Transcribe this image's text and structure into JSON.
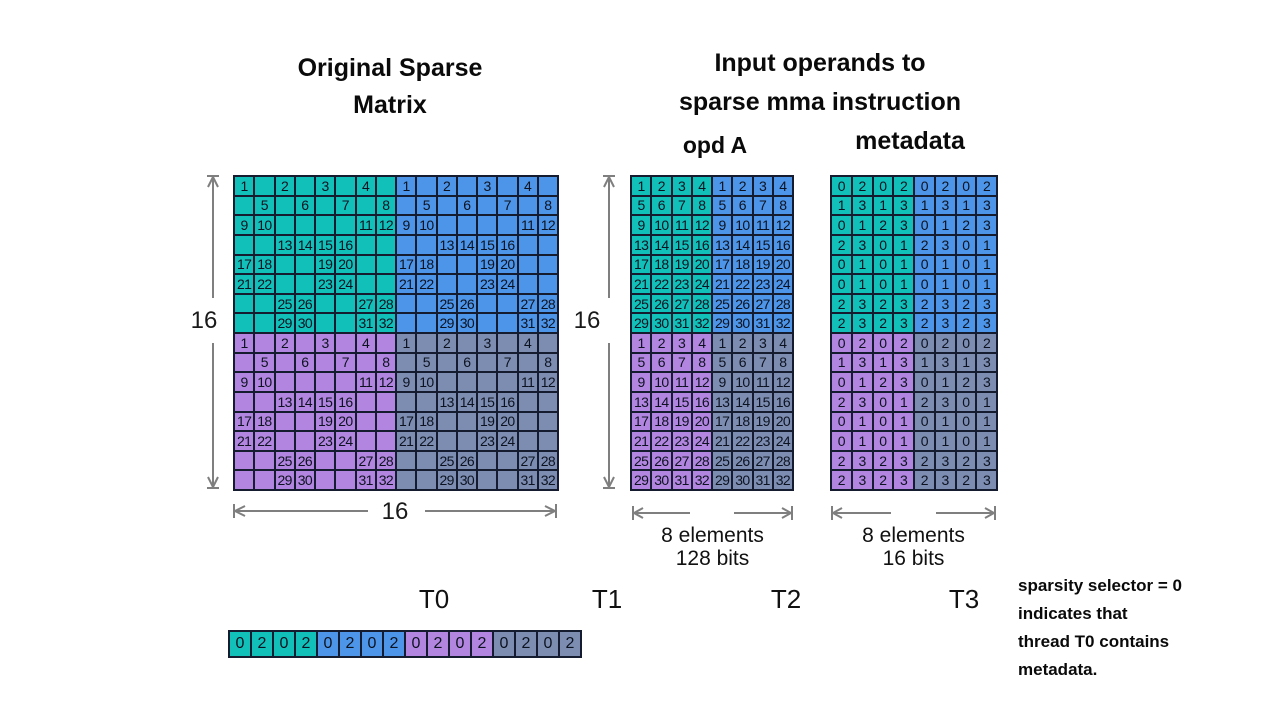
{
  "titles": {
    "original_line1": "Original Sparse",
    "original_line2": "Matrix",
    "input_line1": "Input operands to",
    "input_line2": "sparse mma instruction",
    "opd_a": "opd A",
    "metadata": "metadata"
  },
  "dimension_labels": {
    "matrix_height": "16",
    "matrix_width": "16",
    "opd_height": "16",
    "opd_width_line1": "8 elements",
    "opd_width_line2": "128 bits",
    "meta_width_line1": "8 elements",
    "meta_width_line2": "16 bits"
  },
  "thread_labels": [
    "T0",
    "T1",
    "T2",
    "T3"
  ],
  "note_lines": [
    "sparsity selector = 0",
    "indicates that",
    "thread T0 contains",
    "metadata."
  ],
  "colors": {
    "teal": "#12c0ba",
    "blue": "#4d95e8",
    "purple": "#b286e0",
    "slate": "#7c8db1",
    "border": "#161c30",
    "arrow": "#7f7f7f"
  },
  "quadrant_colors": {
    "tl": "teal",
    "tr": "blue",
    "bl": "purple",
    "br": "slate"
  },
  "grids": {
    "sparse_quadrant": [
      [
        "1",
        "",
        "2",
        "",
        "3",
        "",
        "4",
        ""
      ],
      [
        "",
        "5",
        "",
        "6",
        "",
        "7",
        "",
        "8"
      ],
      [
        "9",
        "10",
        "",
        "",
        "",
        "",
        "11",
        "12"
      ],
      [
        "",
        "",
        "13",
        "14",
        "15",
        "16",
        "",
        ""
      ],
      [
        "17",
        "18",
        "",
        "",
        "19",
        "20",
        "",
        ""
      ],
      [
        "21",
        "22",
        "",
        "",
        "23",
        "24",
        "",
        ""
      ],
      [
        "",
        "",
        "25",
        "26",
        "",
        "",
        "27",
        "28"
      ],
      [
        "",
        "",
        "29",
        "30",
        "",
        "",
        "31",
        "32"
      ]
    ],
    "opd_quadrant": [
      [
        "1",
        "2",
        "3",
        "4"
      ],
      [
        "5",
        "6",
        "7",
        "8"
      ],
      [
        "9",
        "10",
        "11",
        "12"
      ],
      [
        "13",
        "14",
        "15",
        "16"
      ],
      [
        "17",
        "18",
        "19",
        "20"
      ],
      [
        "21",
        "22",
        "23",
        "24"
      ],
      [
        "25",
        "26",
        "27",
        "28"
      ],
      [
        "29",
        "30",
        "31",
        "32"
      ]
    ],
    "meta_quadrant": [
      [
        "0",
        "2",
        "0",
        "2"
      ],
      [
        "1",
        "3",
        "1",
        "3"
      ],
      [
        "0",
        "1",
        "2",
        "3"
      ],
      [
        "2",
        "3",
        "0",
        "1"
      ],
      [
        "0",
        "1",
        "0",
        "1"
      ],
      [
        "0",
        "1",
        "0",
        "1"
      ],
      [
        "2",
        "3",
        "2",
        "3"
      ],
      [
        "2",
        "3",
        "2",
        "3"
      ]
    ]
  },
  "strip": {
    "pattern": [
      "0",
      "2",
      "0",
      "2"
    ],
    "groups": [
      "teal",
      "blue",
      "purple",
      "slate"
    ]
  }
}
